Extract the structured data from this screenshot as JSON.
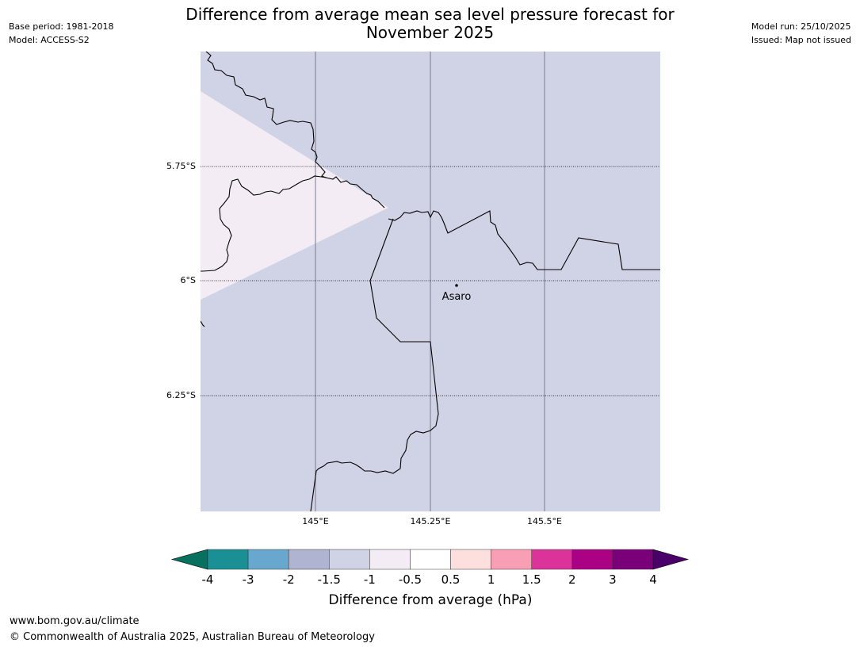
{
  "title_line1": "Difference from average mean sea level pressure forecast for",
  "title_line2": "November 2025",
  "header_left": {
    "base_period": "Base period: 1981-2018",
    "model": "Model: ACCESS-S2"
  },
  "header_right": {
    "model_run": "Model run: 25/10/2025",
    "issued": "Issued: Map not issued"
  },
  "map": {
    "background_color": "#d0d2e5",
    "anomaly_patch_color": "#f3ecf5",
    "latitude_labels": [
      "5.75°S",
      "6°S",
      "6.25°S"
    ],
    "longitude_labels": [
      "145°E",
      "145.25°E",
      "145.5°E"
    ],
    "place": {
      "name": "Asaro"
    }
  },
  "colorbar": {
    "label": "Difference from average (hPa)",
    "ticks": [
      "-4",
      "-3",
      "-2",
      "-1.5",
      "-1",
      "-0.5",
      "0.5",
      "1",
      "1.5",
      "2",
      "3",
      "4"
    ],
    "colors": [
      "#1a9095",
      "#68a8cf",
      "#afb4d1",
      "#d0d2e5",
      "#f3ecf5",
      "#ffffff",
      "#fde0de",
      "#f89fb5",
      "#dc339a",
      "#ab0184",
      "#7a0079"
    ],
    "under_color": "#08705f",
    "over_color": "#4a0068"
  },
  "footer": {
    "url": "www.bom.gov.au/climate",
    "copyright": "© Commonwealth of Australia 2025, Australian Bureau of Meteorology"
  }
}
